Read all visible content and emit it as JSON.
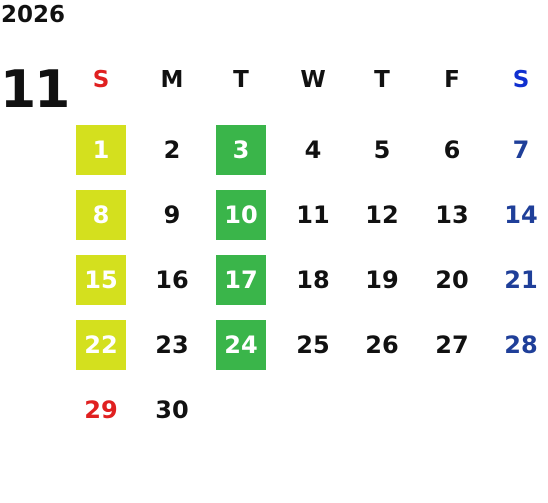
{
  "year": "2026",
  "month": "11",
  "weekdays": [
    "S",
    "M",
    "T",
    "W",
    "T",
    "F",
    "S"
  ],
  "weeks": [
    [
      "1",
      "2",
      "3",
      "4",
      "5",
      "6",
      "7"
    ],
    [
      "8",
      "9",
      "10",
      "11",
      "12",
      "13",
      "14"
    ],
    [
      "15",
      "16",
      "17",
      "18",
      "19",
      "20",
      "21"
    ],
    [
      "22",
      "23",
      "24",
      "25",
      "26",
      "27",
      "28"
    ],
    [
      "29",
      "30",
      null,
      null,
      null,
      null,
      null
    ]
  ]
}
